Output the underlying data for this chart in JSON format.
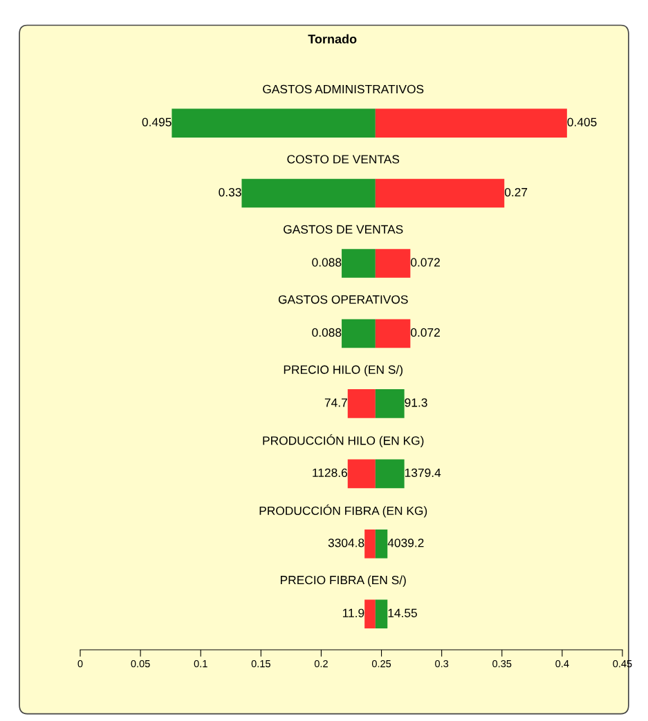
{
  "chart_data": {
    "type": "bar",
    "title": "Tornado",
    "orientation": "horizontal",
    "categories": [
      "GASTOS ADMINISTRATIVOS",
      "COSTO DE VENTAS",
      "GASTOS DE VENTAS",
      "GASTOS OPERATIVOS",
      "PRECIO HILO (EN S/)",
      "PRODUCCIÓN HILO (EN KG)",
      "PRODUCCIÓN FIBRA (EN KG)",
      "PRECIO FIBRA (EN S/)"
    ],
    "series": [
      {
        "base": [
          0.076,
          0.134,
          0.217,
          0.217,
          0.222,
          0.222,
          0.236,
          0.236
        ],
        "values": [
          0.169,
          0.111,
          0.028,
          0.028,
          0.023,
          0.023,
          0.009,
          0.009
        ],
        "colors": [
          "#1f9a2e",
          "#1f9a2e",
          "#1f9a2e",
          "#1f9a2e",
          "#ff3030",
          "#ff3030",
          "#ff3030",
          "#ff3030"
        ]
      },
      {
        "base": [
          0.245,
          0.245,
          0.245,
          0.245,
          0.245,
          0.245,
          0.245,
          0.245
        ],
        "values": [
          0.159,
          0.107,
          0.029,
          0.029,
          0.024,
          0.024,
          0.01,
          0.01
        ],
        "colors": [
          "#ff3030",
          "#ff3030",
          "#ff3030",
          "#ff3030",
          "#1f9a2e",
          "#1f9a2e",
          "#1f9a2e",
          "#1f9a2e"
        ]
      }
    ],
    "annotations": [
      {
        "text": "0.495",
        "x": 0.076,
        "y": "GASTOS ADMINISTRATIVOS"
      },
      {
        "text": "0.405",
        "x": 0.404,
        "y": "GASTOS ADMINISTRATIVOS"
      },
      {
        "text": "0.33",
        "x": 0.134,
        "y": "COSTO DE VENTAS"
      },
      {
        "text": "0.27",
        "x": 0.352,
        "y": "COSTO DE VENTAS"
      },
      {
        "text": "0.088",
        "x": 0.217,
        "y": "GASTOS DE VENTAS"
      },
      {
        "text": "0.072",
        "x": 0.274,
        "y": "GASTOS DE VENTAS"
      },
      {
        "text": "0.088",
        "x": 0.217,
        "y": "GASTOS OPERATIVOS"
      },
      {
        "text": "0.072",
        "x": 0.274,
        "y": "GASTOS OPERATIVOS"
      },
      {
        "text": "74.7",
        "x": 0.222,
        "y": "PRECIO HILO (EN S/)"
      },
      {
        "text": "91.3",
        "x": 0.269,
        "y": "PRECIO HILO (EN S/)"
      },
      {
        "text": "1128.6",
        "x": 0.222,
        "y": "PRODUCCIÓN HILO (EN KG)"
      },
      {
        "text": "1379.4",
        "x": 0.269,
        "y": "PRODUCCIÓN HILO (EN KG)"
      },
      {
        "text": "3304.8",
        "x": 0.236,
        "y": "PRODUCCIÓN FIBRA (EN KG)"
      },
      {
        "text": "4039.2",
        "x": 0.255,
        "y": "PRODUCCIÓN FIBRA (EN KG)"
      },
      {
        "text": "11.9",
        "x": 0.236,
        "y": "PRECIO FIBRA (EN S/)"
      },
      {
        "text": "14.55",
        "x": 0.255,
        "y": "PRECIO FIBRA (EN S/)"
      }
    ],
    "xlim": [
      0,
      0.45
    ],
    "xticks": [
      0,
      0.05,
      0.1,
      0.15,
      0.2,
      0.25,
      0.3,
      0.35,
      0.4,
      0.45
    ],
    "tick_labels": "x",
    "grid": false,
    "legend": false
  }
}
